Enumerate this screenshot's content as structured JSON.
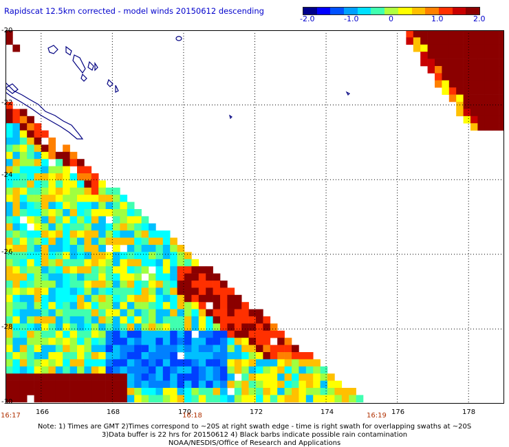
{
  "header": {
    "title": "Rapidscat 12.5km corrected - model winds 20150612 descending"
  },
  "colorbar": {
    "tick_labels": [
      "-2.0",
      "-1.0",
      "0",
      "1.0",
      "2.0"
    ],
    "colors": [
      "#00008b",
      "#0000ff",
      "#0050ff",
      "#00a0ff",
      "#00e0ff",
      "#40ffb0",
      "#b0ff40",
      "#ffff00",
      "#ffc000",
      "#ff8000",
      "#ff3000",
      "#c80000",
      "#8b0000"
    ]
  },
  "map": {
    "lat_labels": [
      "-20",
      "-22",
      "-24",
      "-26",
      "-28",
      "-30"
    ],
    "lon_labels": [
      "166",
      "168",
      "170",
      "172",
      "174",
      "176",
      "178"
    ],
    "time_labels": [
      "16:17",
      "16:18",
      "16:19"
    ],
    "lon_range": [
      165,
      179
    ],
    "lat_range": [
      -30,
      -20
    ],
    "gridlines": true,
    "colors": {
      "coast": "#000080",
      "grid": "#000000",
      "time": "#b03000"
    },
    "swath_seed": 20150612
  },
  "footer": {
    "note_lines": [
      "Note: 1) Times are GMT 2)Times correspond to ~20S at right swath edge - time is right swath for overlapping swaths at ~20S",
      "3)Data buffer is 22 hrs for 20150612 4) Black barbs indicate possible rain contamination",
      "NOAA/NESDIS/Office of Research and Applications"
    ]
  }
}
